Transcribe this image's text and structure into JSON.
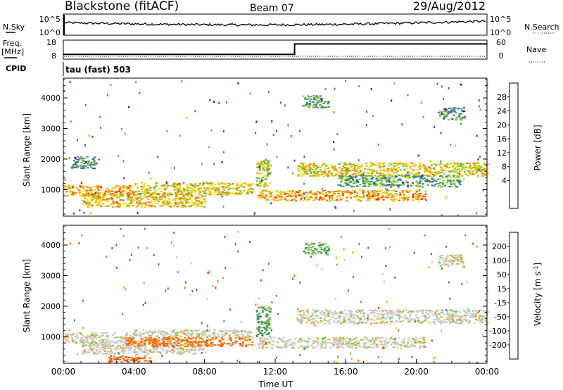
{
  "header": {
    "station": "Blackstone (fitACF)",
    "beam": "Beam 07",
    "date": "29/Aug/2012"
  },
  "side_labels": {
    "nsky": "N.Sky",
    "nsearch": "N.Search",
    "freq": "Freq.",
    "freq_unit": "[MHz]",
    "nave": "Nave",
    "cpid": "CPID"
  },
  "noise_axis": {
    "left_ticks": [
      "10^5",
      "10^0"
    ],
    "right_ticks": [
      "10^5",
      "10^0"
    ]
  },
  "freq_axis": {
    "left_ticks": [
      "18",
      "8"
    ],
    "right_ticks": [
      "60",
      "0"
    ]
  },
  "cpid_text": "tau (fast) 503",
  "chart_data": [
    {
      "type": "line",
      "panel": "noise",
      "series": [
        {
          "name": "N.Sky",
          "style": "solid",
          "level": 0.6
        },
        {
          "name": "N.Search",
          "style": "dotted",
          "level": 0.45
        }
      ]
    },
    {
      "type": "line",
      "panel": "frequency",
      "x": [
        0,
        13.1,
        13.1,
        24
      ],
      "series": [
        {
          "name": "Freq.",
          "unit": "MHz",
          "values": [
            10.4,
            10.4,
            16.6,
            16.6
          ]
        },
        {
          "name": "Nave",
          "values": [
            null,
            null,
            null,
            null
          ]
        }
      ],
      "ylim": [
        8,
        18
      ]
    },
    {
      "type": "heatmap",
      "panel": "power",
      "ylabel": "Slant Range [km]",
      "xlim_hours": [
        0,
        24
      ],
      "ylim": [
        180,
        4600
      ],
      "yticks": [
        "1000",
        "2000",
        "3000",
        "4000"
      ],
      "colorbar": {
        "label": "Power [dB]",
        "ticks": [
          "28",
          "24",
          "20",
          "16",
          "12",
          "8",
          "4"
        ],
        "colors": [
          "#1a0fe0",
          "#2f55c8",
          "#3c8a7a",
          "#5cb340",
          "#a8d800",
          "#ffd800",
          "#ff9a00",
          "#ff5a00",
          "#ee1c00"
        ]
      },
      "echo_regions": [
        {
          "x": [
            0.0,
            4.0
          ],
          "y": [
            800,
            1150
          ],
          "value": 22
        },
        {
          "x": [
            1.0,
            8.0
          ],
          "y": [
            450,
            900
          ],
          "value": 20
        },
        {
          "x": [
            4.0,
            10.7
          ],
          "y": [
            850,
            1250
          ],
          "value": 18
        },
        {
          "x": [
            10.9,
            11.7
          ],
          "y": [
            1100,
            2000
          ],
          "value": 16
        },
        {
          "x": [
            11.0,
            20.5
          ],
          "y": [
            650,
            1000
          ],
          "value": 22
        },
        {
          "x": [
            13.2,
            24.0
          ],
          "y": [
            1450,
            1900
          ],
          "value": 18
        },
        {
          "x": [
            15.5,
            22.5
          ],
          "y": [
            1100,
            1500
          ],
          "value": 10
        },
        {
          "x": [
            0.4,
            2.0
          ],
          "y": [
            1700,
            2100
          ],
          "value": 8
        },
        {
          "x": [
            13.5,
            15.0
          ],
          "y": [
            3700,
            4100
          ],
          "value": 8
        },
        {
          "x": [
            21.2,
            22.7
          ],
          "y": [
            3300,
            3700
          ],
          "value": 8
        }
      ]
    },
    {
      "type": "heatmap",
      "panel": "velocity",
      "xlabel": "Time UT",
      "ylabel": "Slant Range [km]",
      "xlim_hours": [
        0,
        24
      ],
      "ylim": [
        180,
        4600
      ],
      "xticks": [
        "00:00",
        "04:00",
        "08:00",
        "12:00",
        "16:00",
        "20:00",
        "00:00"
      ],
      "yticks": [
        "1000",
        "2000",
        "3000",
        "4000"
      ],
      "colorbar": {
        "label": "Velocity [m s-1]",
        "ticks": [
          "200",
          "100",
          "50",
          "15",
          "-15",
          "-50",
          "-100",
          "-200"
        ],
        "colors": [
          "#2235c8",
          "#3a6fc8",
          "#3c8a5a",
          "#6fc840",
          "#c8c8c8",
          "#ffa000",
          "#ff6a00",
          "#ff3200",
          "#ee0000"
        ]
      },
      "echo_regions": [
        {
          "x": [
            0.0,
            4.0
          ],
          "y": [
            800,
            1150
          ],
          "value": 0
        },
        {
          "x": [
            1.0,
            8.0
          ],
          "y": [
            450,
            900
          ],
          "value": 0
        },
        {
          "x": [
            3.5,
            10.7
          ],
          "y": [
            700,
            1000
          ],
          "value": -70
        },
        {
          "x": [
            4.0,
            10.7
          ],
          "y": [
            1000,
            1250
          ],
          "value": 0
        },
        {
          "x": [
            10.9,
            11.7
          ],
          "y": [
            1000,
            2000
          ],
          "value": 40
        },
        {
          "x": [
            11.0,
            20.5
          ],
          "y": [
            650,
            1000
          ],
          "value": 0
        },
        {
          "x": [
            13.2,
            24.0
          ],
          "y": [
            1450,
            1900
          ],
          "value": 0
        },
        {
          "x": [
            2.5,
            5.0
          ],
          "y": [
            180,
            400
          ],
          "value": -90
        },
        {
          "x": [
            13.5,
            15.0
          ],
          "y": [
            3700,
            4100
          ],
          "value": 30
        },
        {
          "x": [
            21.2,
            22.7
          ],
          "y": [
            3300,
            3700
          ],
          "value": 0
        }
      ]
    }
  ]
}
